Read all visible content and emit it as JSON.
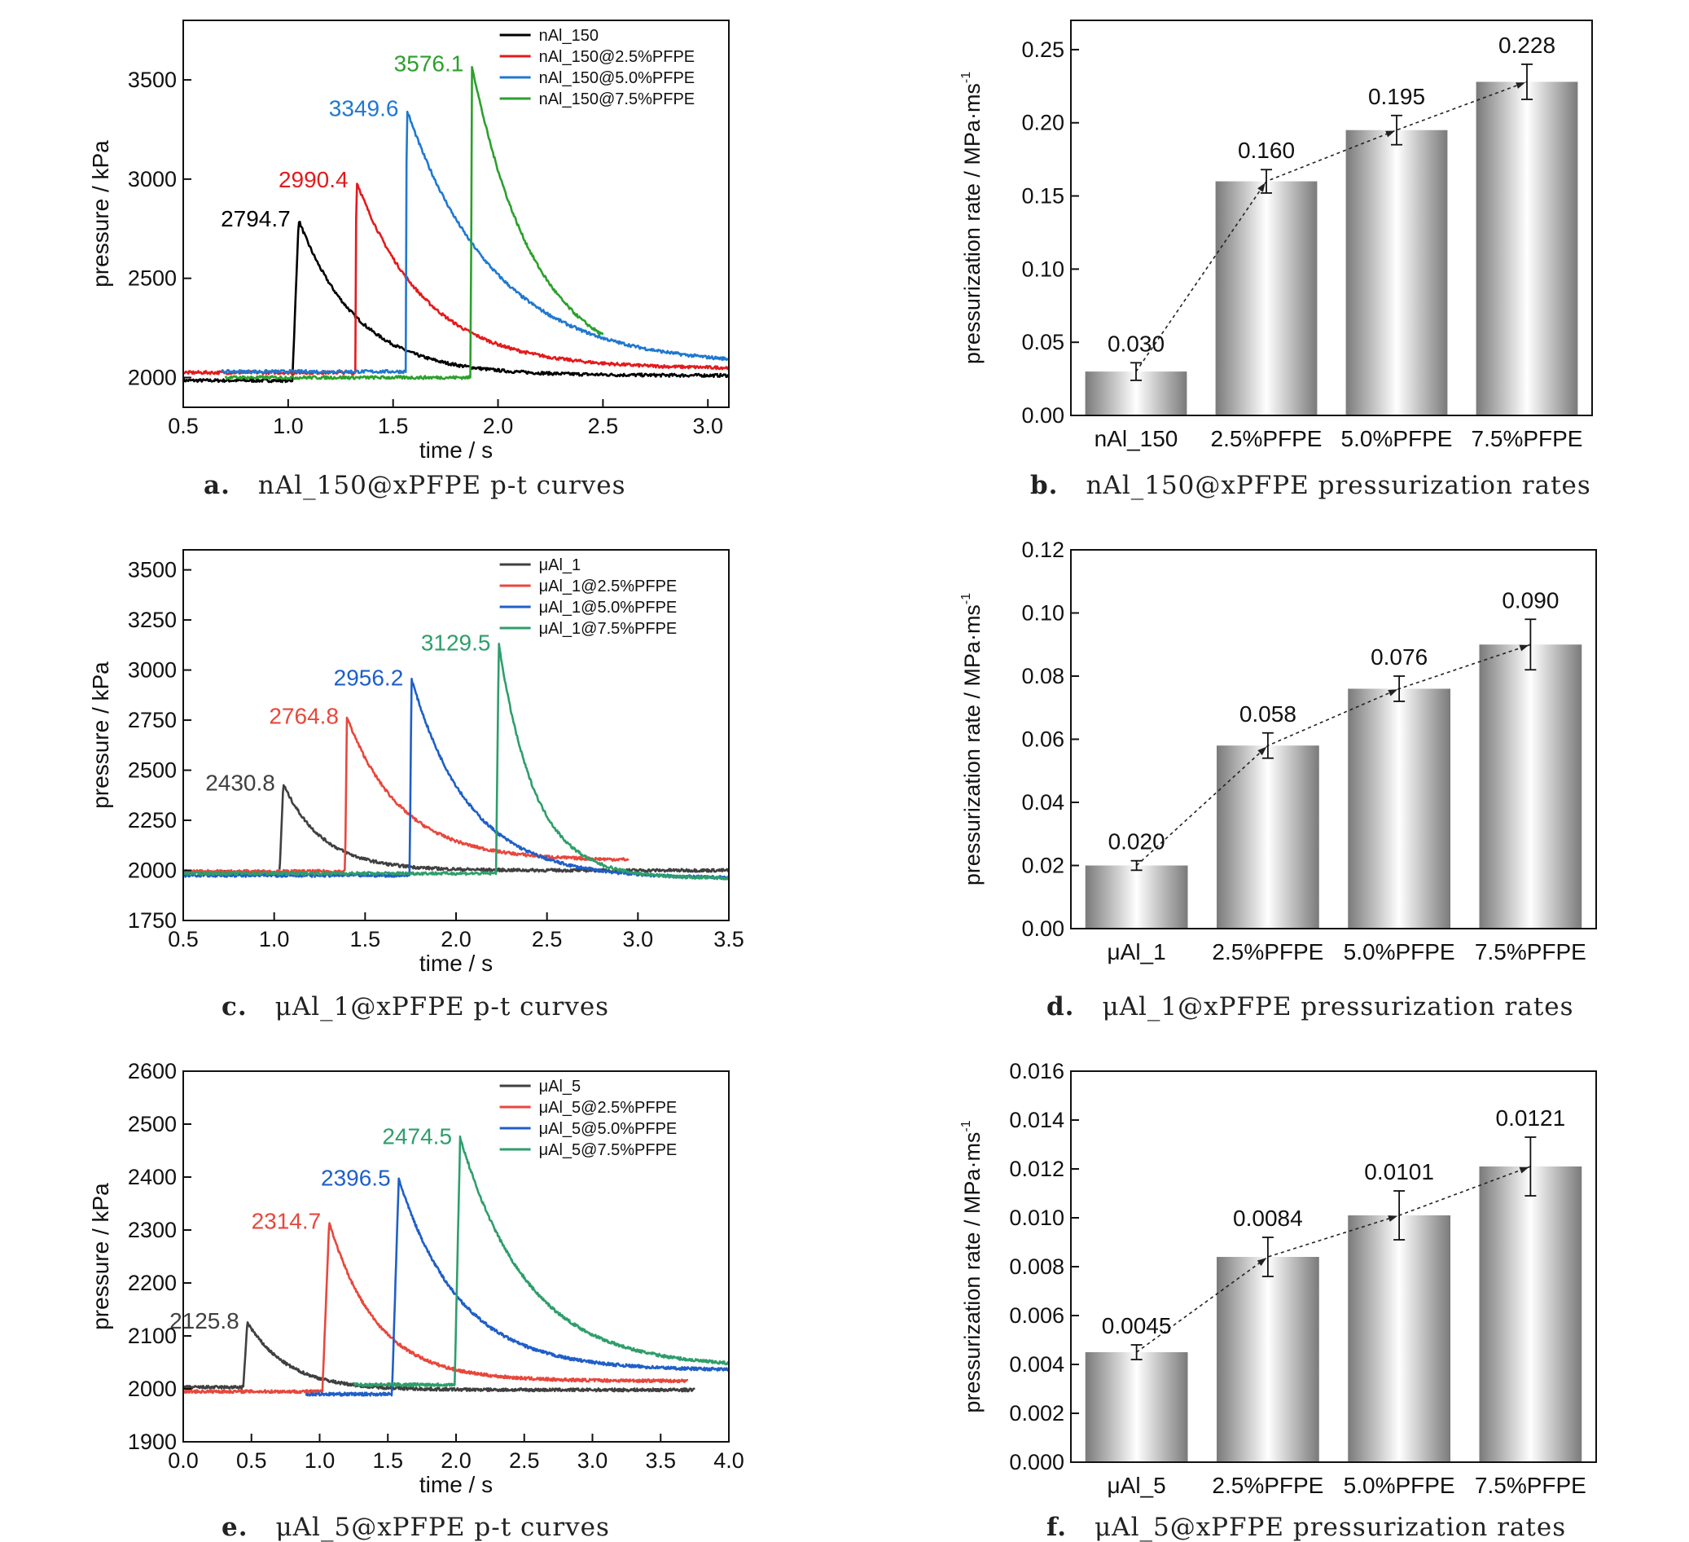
{
  "panels": [
    {
      "id": "a",
      "caption": {
        "letter": "a.",
        "text": "nAl_150@xPFPE p-t curves"
      },
      "chart_data": {
        "type": "line",
        "xlabel": "time / s",
        "ylabel": "pressure / kPa",
        "xlim": [
          0.5,
          3.1
        ],
        "ylim": [
          1850,
          3800
        ],
        "xticks": [
          0.5,
          1.0,
          1.5,
          2.0,
          2.5,
          3.0
        ],
        "xtick_labels": [
          "0.5",
          "1.0",
          "1.5",
          "2.0",
          "2.5",
          "3.0"
        ],
        "yticks": [
          2000,
          2500,
          3000,
          3500
        ],
        "ytick_labels": [
          "2000",
          "2500",
          "3000",
          "3500"
        ],
        "legend_position": "top-right",
        "series": [
          {
            "name": "nAl_150",
            "color": "#000000",
            "t0": 0.5,
            "t_end": 3.1,
            "base": 1985,
            "rise": 1.02,
            "ramp": 0.03,
            "peak_t": 1.05,
            "peak": 2794.7,
            "tail": 2010,
            "tau": 0.28,
            "label": "2794.7"
          },
          {
            "name": "nAl_150@2.5%PFPE",
            "color": "#e41a1c",
            "t0": 0.5,
            "t_end": 3.1,
            "base": 2025,
            "rise": 1.32,
            "ramp": 0.004,
            "peak_t": 1.325,
            "peak": 2990.4,
            "tail": 2045,
            "tau": 0.33,
            "label": "2990.4"
          },
          {
            "name": "nAl_150@5.0%PFPE",
            "color": "#1f78d1",
            "t0": 0.68,
            "t_end": 3.1,
            "base": 2030,
            "rise": 1.56,
            "ramp": 0.004,
            "peak_t": 1.565,
            "peak": 3349.6,
            "tail": 2060,
            "tau": 0.42,
            "label": "3349.6"
          },
          {
            "name": "nAl_150@7.5%PFPE",
            "color": "#2ca02c",
            "t0": 0.7,
            "t_end": 2.5,
            "base": 2000,
            "rise": 1.87,
            "ramp": 0.004,
            "peak_t": 1.875,
            "peak": 3576.1,
            "tail": 2020,
            "tau": 0.3,
            "label": "3576.1"
          }
        ]
      }
    },
    {
      "id": "b",
      "caption": {
        "letter": "b.",
        "text": "nAl_150@xPFPE pressurization rates"
      },
      "chart_data": {
        "type": "bar",
        "ylabel": "pressurization rate / MPa·ms",
        "ylabel_sup": "-1",
        "categories": [
          "nAl_150",
          "2.5%PFPE",
          "5.0%PFPE",
          "7.5%PFPE"
        ],
        "values": [
          0.03,
          0.16,
          0.195,
          0.228
        ],
        "value_labels": [
          "0.030",
          "0.160",
          "0.195",
          "0.228"
        ],
        "errors": [
          0.006,
          0.008,
          0.01,
          0.012
        ],
        "ylim": [
          0,
          0.27
        ],
        "yticks": [
          0,
          0.05,
          0.1,
          0.15,
          0.2,
          0.25
        ],
        "ytick_labels": [
          "0.00",
          "0.05",
          "0.10",
          "0.15",
          "0.20",
          "0.25"
        ]
      }
    },
    {
      "id": "c",
      "caption": {
        "letter": "c.",
        "text": "μAl_1@xPFPE p-t curves"
      },
      "chart_data": {
        "type": "line",
        "xlabel": "time / s",
        "ylabel": "pressure / kPa",
        "xlim": [
          0.5,
          3.5
        ],
        "ylim": [
          1750,
          3600
        ],
        "xticks": [
          0.5,
          1.0,
          1.5,
          2.0,
          2.5,
          3.0,
          3.5
        ],
        "xtick_labels": [
          "0.5",
          "1.0",
          "1.5",
          "2.0",
          "2.5",
          "3.0",
          "3.5"
        ],
        "yticks": [
          1750,
          2000,
          2250,
          2500,
          2750,
          3000,
          3250,
          3500
        ],
        "ytick_labels": [
          "1750",
          "2000",
          "2250",
          "2500",
          "2750",
          "3000",
          "3250",
          "3500"
        ],
        "legend_position": "top-right",
        "series": [
          {
            "name": "μAl_1",
            "color": "#404040",
            "t0": 0.5,
            "t_end": 3.5,
            "base": 1990,
            "rise": 1.03,
            "ramp": 0.02,
            "peak_t": 1.05,
            "peak": 2430.8,
            "tail": 2000,
            "tau": 0.22,
            "label": "2430.8"
          },
          {
            "name": "μAl_1@2.5%PFPE",
            "color": "#e8473c",
            "t0": 0.5,
            "t_end": 2.95,
            "base": 1995,
            "rise": 1.39,
            "ramp": 0.01,
            "peak_t": 1.4,
            "peak": 2764.8,
            "tail": 2050,
            "tau": 0.3,
            "label": "2764.8"
          },
          {
            "name": "μAl_1@5.0%PFPE",
            "color": "#1f5fc8",
            "t0": 0.5,
            "t_end": 3.5,
            "base": 1975,
            "rise": 1.745,
            "ramp": 0.01,
            "peak_t": 1.755,
            "peak": 2956.2,
            "tail": 1960,
            "tau": 0.32,
            "label": "2956.2"
          },
          {
            "name": "μAl_1@7.5%PFPE",
            "color": "#2e9e6b",
            "t0": 0.5,
            "t_end": 3.5,
            "base": 1985,
            "rise": 2.22,
            "ramp": 0.015,
            "peak_t": 2.235,
            "peak": 3129.5,
            "tail": 1960,
            "tau": 0.2,
            "label": "3129.5"
          }
        ]
      }
    },
    {
      "id": "d",
      "caption": {
        "letter": "d.",
        "text": "μAl_1@xPFPE pressurization rates"
      },
      "chart_data": {
        "type": "bar",
        "ylabel": "pressurization rate / MPa·ms",
        "ylabel_sup": "-1",
        "categories": [
          "μAl_1",
          "2.5%PFPE",
          "5.0%PFPE",
          "7.5%PFPE"
        ],
        "values": [
          0.02,
          0.058,
          0.076,
          0.09
        ],
        "value_labels": [
          "0.020",
          "0.058",
          "0.076",
          "0.090"
        ],
        "errors": [
          0.0015,
          0.004,
          0.004,
          0.008
        ],
        "ylim": [
          0,
          0.12
        ],
        "yticks": [
          0,
          0.02,
          0.04,
          0.06,
          0.08,
          0.1,
          0.12
        ],
        "ytick_labels": [
          "0.00",
          "0.02",
          "0.04",
          "0.06",
          "0.08",
          "0.10",
          "0.12"
        ]
      }
    },
    {
      "id": "e",
      "caption": {
        "letter": "e.",
        "text": "μAl_5@xPFPE p-t curves"
      },
      "chart_data": {
        "type": "line",
        "xlabel": "time / s",
        "ylabel": "pressure / kPa",
        "xlim": [
          0.0,
          4.0
        ],
        "ylim": [
          1900,
          2600
        ],
        "xticks": [
          0.0,
          0.5,
          1.0,
          1.5,
          2.0,
          2.5,
          3.0,
          3.5,
          4.0
        ],
        "xtick_labels": [
          "0.0",
          "0.5",
          "1.0",
          "1.5",
          "2.0",
          "2.5",
          "3.0",
          "3.5",
          "4.0"
        ],
        "yticks": [
          1900,
          2000,
          2100,
          2200,
          2300,
          2400,
          2500,
          2600
        ],
        "ytick_labels": [
          "1900",
          "2000",
          "2100",
          "2200",
          "2300",
          "2400",
          "2500",
          "2600"
        ],
        "legend_position": "top-right",
        "series": [
          {
            "name": "μAl_5",
            "color": "#404040",
            "t0": 0.0,
            "t_end": 3.75,
            "base": 2003,
            "rise": 0.44,
            "ramp": 0.03,
            "peak_t": 0.47,
            "peak": 2125.8,
            "tail": 1998,
            "tau": 0.3,
            "label": "2125.8"
          },
          {
            "name": "μAl_5@2.5%PFPE",
            "color": "#e8473c",
            "t0": 0.0,
            "t_end": 3.7,
            "base": 1995,
            "rise": 1.02,
            "ramp": 0.05,
            "peak_t": 1.07,
            "peak": 2314.7,
            "tail": 2015,
            "tau": 0.35,
            "label": "2314.7"
          },
          {
            "name": "μAl_5@5.0%PFPE",
            "color": "#1f5fc8",
            "t0": 0.9,
            "t_end": 4.0,
            "base": 1990,
            "rise": 1.53,
            "ramp": 0.05,
            "peak_t": 1.58,
            "peak": 2396.5,
            "tail": 2035,
            "tau": 0.45,
            "label": "2396.5"
          },
          {
            "name": "μAl_5@7.5%PFPE",
            "color": "#2e9e6b",
            "t0": 1.25,
            "t_end": 4.0,
            "base": 2008,
            "rise": 1.99,
            "ramp": 0.04,
            "peak_t": 2.03,
            "peak": 2474.5,
            "tail": 2040,
            "tau": 0.5,
            "label": "2474.5"
          }
        ]
      }
    },
    {
      "id": "f",
      "caption": {
        "letter": "f.",
        "text": "μAl_5@xPFPE pressurization rates"
      },
      "chart_data": {
        "type": "bar",
        "ylabel": "pressurization rate / MPa·ms",
        "ylabel_sup": "-1",
        "categories": [
          "μAl_5",
          "2.5%PFPE",
          "5.0%PFPE",
          "7.5%PFPE"
        ],
        "values": [
          0.0045,
          0.0084,
          0.0101,
          0.0121
        ],
        "value_labels": [
          "0.0045",
          "0.0084",
          "0.0101",
          "0.0121"
        ],
        "errors": [
          0.0003,
          0.0008,
          0.001,
          0.0012
        ],
        "ylim": [
          0,
          0.016
        ],
        "yticks": [
          0,
          0.002,
          0.004,
          0.006,
          0.008,
          0.01,
          0.012,
          0.014,
          0.016
        ],
        "ytick_labels": [
          "0.000",
          "0.002",
          "0.004",
          "0.006",
          "0.008",
          "0.010",
          "0.012",
          "0.014",
          "0.016"
        ]
      }
    }
  ]
}
